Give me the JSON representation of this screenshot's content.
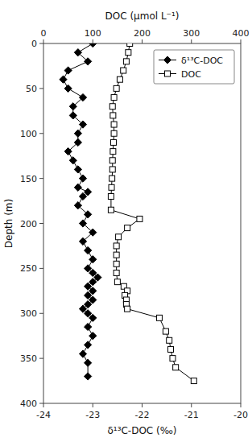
{
  "chart_data": {
    "type": "line",
    "xlabel": "δ¹³C-DOC (‰)",
    "x2label": "DOC (μmol L⁻¹)",
    "ylabel": "Depth (m)",
    "xlim": [
      -24,
      -20
    ],
    "xticks": [
      -24,
      -23,
      -22,
      -21,
      -20
    ],
    "x2lim": [
      0,
      400
    ],
    "x2ticks": [
      0,
      100,
      200,
      300,
      400
    ],
    "ylim": [
      400,
      0
    ],
    "yticks": [
      0,
      50,
      100,
      150,
      200,
      250,
      300,
      350,
      400
    ],
    "legend": "upper right",
    "series": [
      {
        "name": "δ¹³C-DOC",
        "color": "black",
        "marker": "diamond",
        "x": [
          -23.0,
          -23.3,
          -23.1,
          -23.5,
          -23.6,
          -23.5,
          -23.2,
          -23.4,
          -23.4,
          -23.2,
          -23.3,
          -23.3,
          -23.5,
          -23.4,
          -23.3,
          -23.2,
          -23.3,
          -23.1,
          -23.2,
          -23.3,
          -23.1,
          -23.2,
          -23.0,
          -23.2,
          -23.1,
          -23.0,
          -23.1,
          -23.0,
          -22.9,
          -23.0,
          -23.1,
          -23.0,
          -23.1,
          -23.0,
          -23.1,
          -23.2,
          -23.1,
          -23.0,
          -23.1,
          -23.0,
          -23.1,
          -23.2,
          -23.1,
          -23.1
        ],
        "y": [
          0,
          10,
          20,
          30,
          40,
          50,
          60,
          70,
          80,
          90,
          100,
          110,
          120,
          130,
          140,
          150,
          160,
          165,
          170,
          180,
          190,
          200,
          210,
          220,
          230,
          240,
          250,
          255,
          260,
          265,
          270,
          275,
          280,
          285,
          290,
          295,
          300,
          305,
          315,
          325,
          335,
          345,
          355,
          370
        ]
      },
      {
        "name": "DOC",
        "color": "black",
        "marker": "open-square",
        "axis": "x2",
        "x": [
          175,
          172,
          168,
          162,
          155,
          148,
          143,
          140,
          141,
          143,
          143,
          142,
          141,
          140,
          140,
          139,
          138,
          137,
          137,
          195,
          170,
          152,
          148,
          148,
          148,
          148,
          150,
          163,
          170,
          165,
          168,
          168,
          170,
          235,
          248,
          255,
          258,
          262,
          268,
          305
        ],
        "y": [
          0,
          10,
          20,
          30,
          40,
          50,
          60,
          70,
          80,
          90,
          100,
          110,
          120,
          130,
          140,
          150,
          160,
          170,
          185,
          195,
          205,
          215,
          225,
          235,
          245,
          255,
          265,
          270,
          275,
          280,
          285,
          290,
          295,
          305,
          320,
          330,
          340,
          350,
          360,
          375
        ]
      }
    ]
  }
}
